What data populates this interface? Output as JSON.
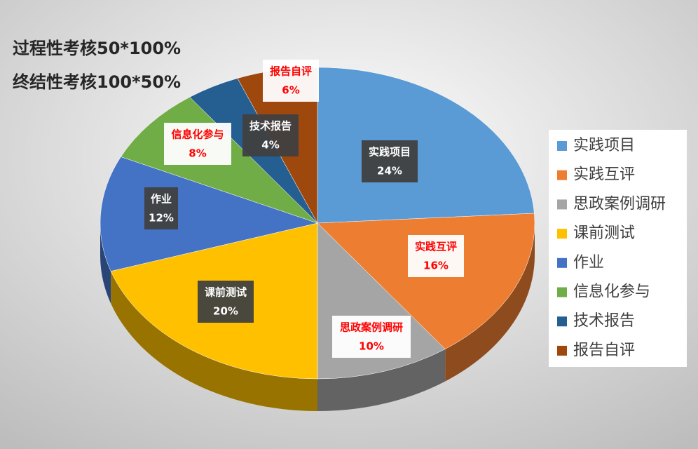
{
  "chart_data": {
    "type": "pie",
    "title": "过程性考核50*100%",
    "subtitle": "终结性考核100*50%",
    "categories": [
      "实践项目",
      "实践互评",
      "思政案例调研",
      "课前测试",
      "作业",
      "信息化参与",
      "技术报告",
      "报告自评"
    ],
    "values": [
      24,
      16,
      10,
      20,
      12,
      8,
      4,
      6
    ],
    "value_labels": [
      "24%",
      "16%",
      "10%",
      "20%",
      "12%",
      "8%",
      "4%",
      "6%"
    ],
    "colors": [
      "#5b9bd5",
      "#ed7d31",
      "#a5a5a5",
      "#ffc000",
      "#4472c4",
      "#70ad47",
      "#255e91",
      "#9e480e"
    ],
    "label_colors": [
      "#ffffff",
      "#ff0000",
      "#ff0000",
      "#ffffff",
      "#ffffff",
      "#ff0000",
      "#ffffff",
      "#ff0000"
    ],
    "legend": "right"
  }
}
